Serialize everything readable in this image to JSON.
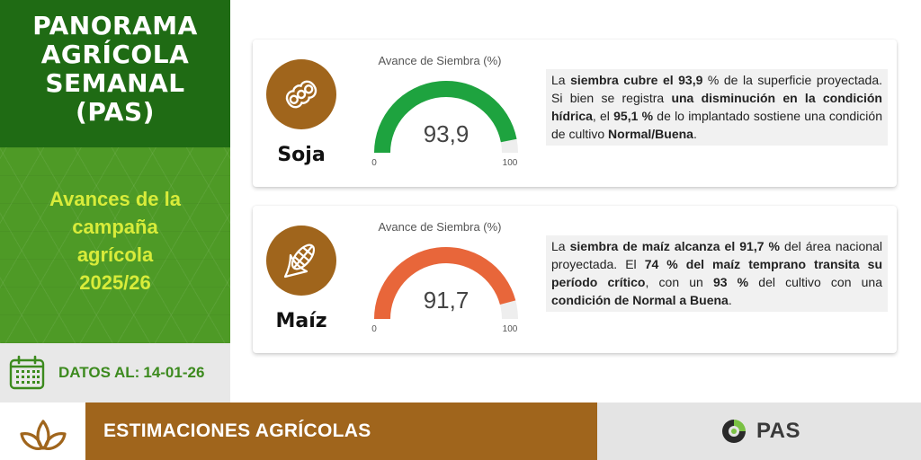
{
  "header": {
    "title_lines": [
      "PANORAMA",
      "AGRÍCOLA",
      "SEMANAL",
      "(PAS)"
    ]
  },
  "campaign": {
    "lines": [
      "Avances de la",
      "campaña",
      "agrícola",
      "2025/26"
    ]
  },
  "date": {
    "label": "DATOS AL:",
    "value": "14-01-26",
    "icon": "calendar-icon"
  },
  "crops": [
    {
      "name": "Soja",
      "icon": "soybean-icon",
      "gauge": {
        "title": "Avance de Siembra (%)",
        "value": 93.9,
        "value_label": "93,9",
        "min": "0",
        "max": "100",
        "color": "#1ea33f",
        "track_color": "#eeeeee"
      },
      "description": [
        {
          "text": "La ",
          "bold": false
        },
        {
          "text": "siembra cubre el 93,9",
          "bold": true
        },
        {
          "text": " % de la superficie proyectada. Si bien se registra ",
          "bold": false
        },
        {
          "text": "una disminución en la condición hídrica",
          "bold": true
        },
        {
          "text": ", el ",
          "bold": false
        },
        {
          "text": "95,1 %",
          "bold": true
        },
        {
          "text": " de lo implantado sostiene una condición de cultivo ",
          "bold": false
        },
        {
          "text": "Normal/Buena",
          "bold": true
        },
        {
          "text": ".",
          "bold": false
        }
      ]
    },
    {
      "name": "Maíz",
      "icon": "corn-icon",
      "gauge": {
        "title": "Avance de Siembra (%)",
        "value": 91.7,
        "value_label": "91,7",
        "min": "0",
        "max": "100",
        "color": "#e8663a",
        "track_color": "#eeeeee"
      },
      "description": [
        {
          "text": "La ",
          "bold": false
        },
        {
          "text": "siembra de maíz alcanza el 91,7 %",
          "bold": true
        },
        {
          "text": " del área nacional proyectada. El ",
          "bold": false
        },
        {
          "text": "74 % del maíz temprano transita su período crítico",
          "bold": true
        },
        {
          "text": ", con un ",
          "bold": false
        },
        {
          "text": "93 %",
          "bold": true
        },
        {
          "text": " del cultivo con una ",
          "bold": false
        },
        {
          "text": "condición de Normal a Buena",
          "bold": true
        },
        {
          "text": ".",
          "bold": false
        }
      ]
    }
  ],
  "footer": {
    "section_label": "ESTIMACIONES AGRÍCOLAS",
    "leaf_icon": "leaf-sprout-icon",
    "logo_text": "PAS",
    "logo_icon": "pas-logo-icon"
  },
  "colors": {
    "dark_green": "#1f6b14",
    "mid_green": "#4e9a26",
    "lime_text": "#d8ec3a",
    "brown": "#a0651c"
  }
}
